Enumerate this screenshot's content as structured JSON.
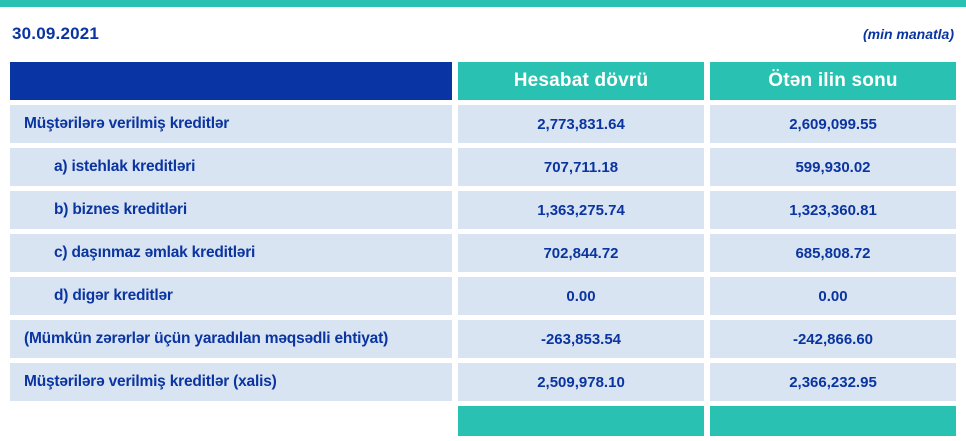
{
  "accent_color": "#29c2b2",
  "header_blue": "#0834a4",
  "row_bg": "#d9e4f2",
  "text_blue": "#0a34a0",
  "meta": {
    "date": "30.09.2021",
    "unit": "(min manatla)"
  },
  "table": {
    "columns": {
      "current": "Hesabat dövrü",
      "previous": "Ötən ilin sonu"
    },
    "rows": [
      {
        "label": "Müştərilərə verilmiş kreditlər",
        "current": "2,773,831.64",
        "previous": "2,609,099.55"
      },
      {
        "label": "a) istehlak kreditləri",
        "current": "707,711.18",
        "previous": "599,930.02"
      },
      {
        "label": "b) biznes kreditləri",
        "current": "1,363,275.74",
        "previous": "1,323,360.81"
      },
      {
        "label": "c) daşınmaz əmlak kreditləri",
        "current": "702,844.72",
        "previous": "685,808.72"
      },
      {
        "label": "d) digər kreditlər",
        "current": "0.00",
        "previous": "0.00"
      },
      {
        "label": "(Mümkün zərərlər üçün yaradılan məqsədli ehtiyat)",
        "current": "-263,853.54",
        "previous": "-242,866.60"
      },
      {
        "label": "Müştərilərə verilmiş kreditlər (xalis)",
        "current": "2,509,978.10",
        "previous": "2,366,232.95"
      }
    ]
  }
}
